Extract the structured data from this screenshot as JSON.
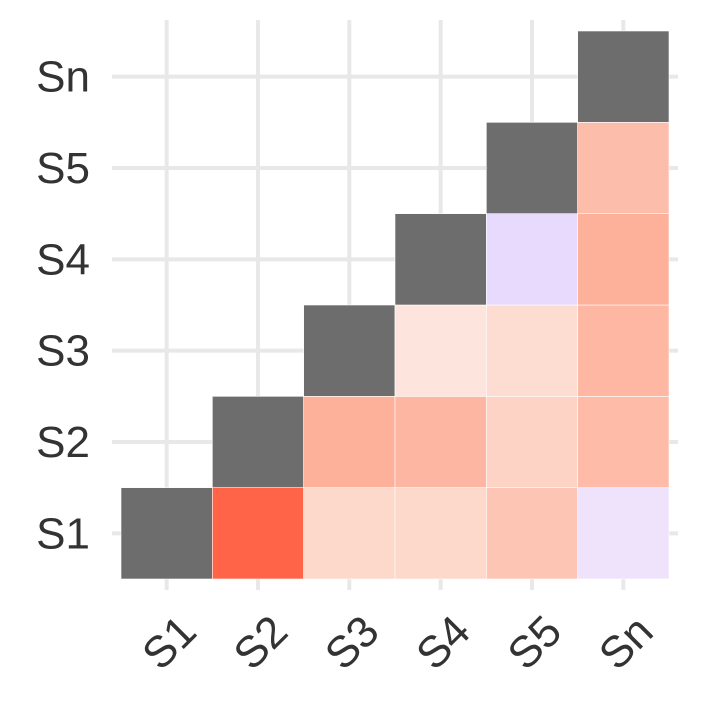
{
  "chart_data": {
    "type": "heatmap",
    "x_categories": [
      "S1",
      "S2",
      "S3",
      "S4",
      "S5",
      "Sn"
    ],
    "y_categories": [
      "S1",
      "S2",
      "S3",
      "S4",
      "S5",
      "Sn"
    ],
    "title": "",
    "xlabel": "",
    "ylabel": "",
    "grid": true,
    "legend": "none",
    "colors": {
      "diagonal": "#6d6d6d",
      "gridline": "#e8e8e8"
    },
    "cells": [
      {
        "x": "S1",
        "y": "S1",
        "color": "#6d6d6d",
        "diagonal": true
      },
      {
        "x": "S2",
        "y": "S1",
        "color": "#ff6448"
      },
      {
        "x": "S3",
        "y": "S1",
        "color": "#fcd9cb"
      },
      {
        "x": "S4",
        "y": "S1",
        "color": "#fcd9cb"
      },
      {
        "x": "S5",
        "y": "S1",
        "color": "#fdc5b4"
      },
      {
        "x": "Sn",
        "y": "S1",
        "color": "#efe3fc"
      },
      {
        "x": "S2",
        "y": "S2",
        "color": "#6d6d6d",
        "diagonal": true
      },
      {
        "x": "S3",
        "y": "S2",
        "color": "#fdb09a"
      },
      {
        "x": "S4",
        "y": "S2",
        "color": "#fdb6a2"
      },
      {
        "x": "S5",
        "y": "S2",
        "color": "#fdd3c5"
      },
      {
        "x": "Sn",
        "y": "S2",
        "color": "#fdbba8"
      },
      {
        "x": "S3",
        "y": "S3",
        "color": "#6d6d6d",
        "diagonal": true
      },
      {
        "x": "S4",
        "y": "S3",
        "color": "#fde5dd"
      },
      {
        "x": "S5",
        "y": "S3",
        "color": "#fddcd2"
      },
      {
        "x": "Sn",
        "y": "S3",
        "color": "#fdb7a2"
      },
      {
        "x": "S4",
        "y": "S4",
        "color": "#6d6d6d",
        "diagonal": true
      },
      {
        "x": "S5",
        "y": "S4",
        "color": "#e8dafc"
      },
      {
        "x": "Sn",
        "y": "S4",
        "color": "#fdb09a"
      },
      {
        "x": "S5",
        "y": "S5",
        "color": "#6d6d6d",
        "diagonal": true
      },
      {
        "x": "Sn",
        "y": "S5",
        "color": "#fdbdab"
      },
      {
        "x": "Sn",
        "y": "Sn",
        "color": "#6d6d6d",
        "diagonal": true
      }
    ]
  }
}
